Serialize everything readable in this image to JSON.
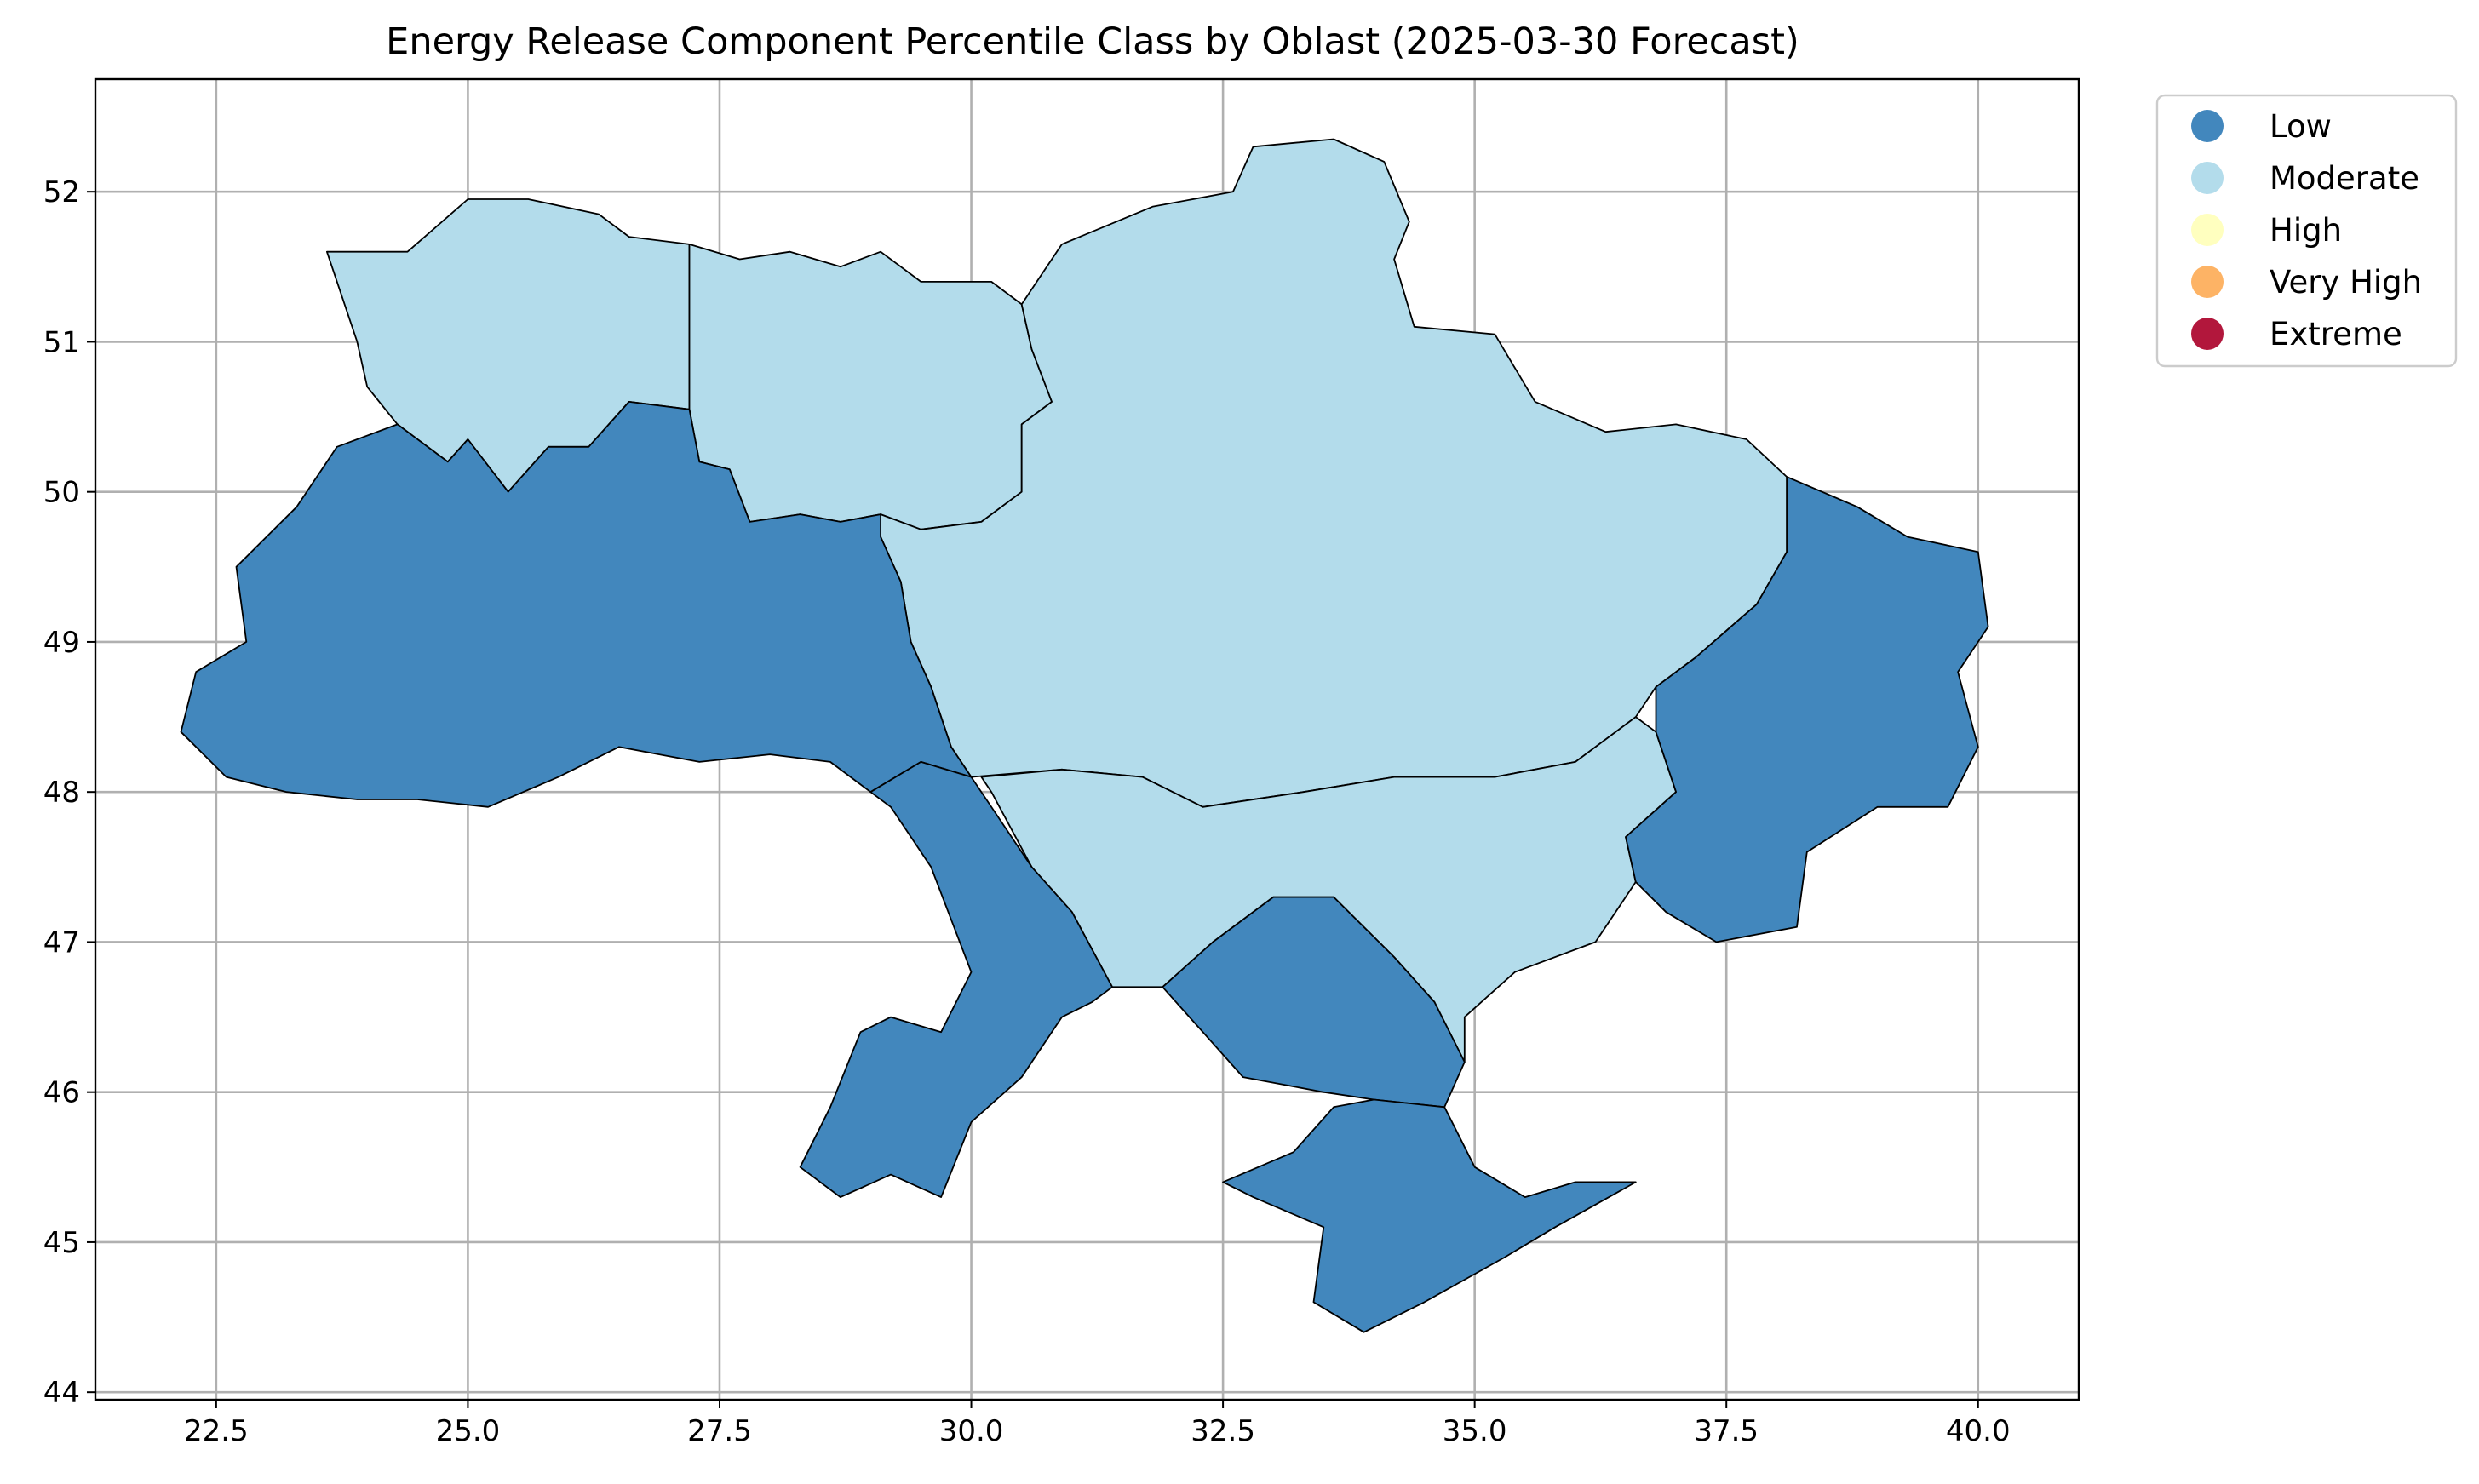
{
  "title": "Energy Release Component Percentile Class by Oblast (2025-03-30 Forecast)",
  "x_axis": {
    "min": 21.3,
    "max": 41.0,
    "ticks": [
      22.5,
      25.0,
      27.5,
      30.0,
      32.5,
      35.0,
      37.5,
      40.0
    ],
    "tick_labels": [
      "22.5",
      "25.0",
      "27.5",
      "30.0",
      "32.5",
      "35.0",
      "37.5",
      "40.0"
    ]
  },
  "y_axis": {
    "min": 43.95,
    "max": 52.75,
    "ticks": [
      44,
      45,
      46,
      47,
      48,
      49,
      50,
      51,
      52
    ],
    "tick_labels": [
      "44",
      "45",
      "46",
      "47",
      "48",
      "49",
      "50",
      "51",
      "52"
    ]
  },
  "grid": true,
  "legend": {
    "placement": "outside upper right",
    "items": [
      {
        "label": "Low",
        "color": "#4287bd"
      },
      {
        "label": "Moderate",
        "color": "#b3dceb"
      },
      {
        "label": "High",
        "color": "#ffffbf"
      },
      {
        "label": "Very High",
        "color": "#fdb365"
      },
      {
        "label": "Extreme",
        "color": "#b2173c"
      }
    ]
  },
  "chart_data": {
    "type": "choropleth",
    "value": "ERC percentile class",
    "classes": [
      "Low",
      "Moderate",
      "High",
      "Very High",
      "Extreme"
    ],
    "regions": [
      {
        "class": "Moderate",
        "points": [
          [
            23.6,
            51.6
          ],
          [
            24.4,
            51.6
          ],
          [
            25.0,
            51.95
          ],
          [
            25.6,
            51.95
          ],
          [
            26.3,
            51.85
          ],
          [
            26.6,
            51.7
          ],
          [
            27.2,
            51.65
          ],
          [
            27.2,
            51.1
          ],
          [
            27.2,
            50.55
          ],
          [
            26.6,
            50.6
          ],
          [
            26.2,
            50.3
          ],
          [
            25.8,
            50.3
          ],
          [
            25.4,
            50.0
          ],
          [
            25.0,
            50.35
          ],
          [
            24.8,
            50.2
          ],
          [
            24.3,
            50.45
          ],
          [
            24.0,
            50.7
          ],
          [
            23.9,
            51.0
          ],
          [
            23.6,
            51.6
          ]
        ]
      },
      {
        "class": "Moderate",
        "points": [
          [
            27.2,
            51.65
          ],
          [
            27.7,
            51.55
          ],
          [
            28.2,
            51.6
          ],
          [
            28.7,
            51.5
          ],
          [
            29.1,
            51.6
          ],
          [
            29.5,
            51.4
          ],
          [
            30.2,
            51.4
          ],
          [
            30.5,
            51.25
          ],
          [
            30.6,
            50.95
          ],
          [
            30.8,
            50.6
          ],
          [
            30.5,
            50.45
          ],
          [
            30.5,
            50.0
          ],
          [
            30.1,
            49.8
          ],
          [
            29.5,
            49.75
          ],
          [
            29.1,
            49.85
          ],
          [
            28.7,
            49.8
          ],
          [
            28.3,
            49.85
          ],
          [
            27.8,
            49.8
          ],
          [
            27.6,
            50.15
          ],
          [
            27.3,
            50.2
          ],
          [
            27.2,
            50.55
          ],
          [
            27.2,
            51.1
          ],
          [
            27.2,
            51.65
          ]
        ]
      },
      {
        "class": "Moderate",
        "points": [
          [
            30.5,
            51.25
          ],
          [
            30.9,
            51.65
          ],
          [
            31.8,
            51.9
          ],
          [
            32.6,
            52.0
          ],
          [
            32.8,
            52.3
          ],
          [
            33.6,
            52.35
          ],
          [
            34.1,
            52.2
          ],
          [
            34.35,
            51.8
          ],
          [
            34.2,
            51.55
          ],
          [
            34.4,
            51.1
          ],
          [
            35.2,
            51.05
          ],
          [
            35.6,
            50.6
          ],
          [
            36.3,
            50.4
          ],
          [
            37.0,
            50.45
          ],
          [
            37.7,
            50.35
          ],
          [
            38.1,
            50.1
          ],
          [
            38.1,
            49.6
          ],
          [
            37.8,
            49.25
          ],
          [
            37.2,
            48.9
          ],
          [
            36.8,
            48.7
          ],
          [
            36.6,
            48.5
          ],
          [
            36.0,
            48.2
          ],
          [
            35.2,
            48.1
          ],
          [
            34.2,
            48.1
          ],
          [
            33.3,
            48.0
          ],
          [
            32.3,
            47.9
          ],
          [
            31.7,
            48.1
          ],
          [
            30.9,
            48.15
          ],
          [
            30.0,
            48.1
          ],
          [
            29.8,
            48.3
          ],
          [
            29.6,
            48.7
          ],
          [
            29.4,
            49.0
          ],
          [
            29.3,
            49.4
          ],
          [
            29.1,
            49.7
          ],
          [
            29.1,
            49.85
          ],
          [
            29.5,
            49.75
          ],
          [
            30.1,
            49.8
          ],
          [
            30.5,
            50.0
          ],
          [
            30.5,
            50.45
          ],
          [
            30.8,
            50.6
          ],
          [
            30.6,
            50.95
          ],
          [
            30.5,
            51.25
          ]
        ]
      },
      {
        "class": "Moderate",
        "points": [
          [
            30.1,
            48.1
          ],
          [
            30.9,
            48.15
          ],
          [
            31.7,
            48.1
          ],
          [
            32.3,
            47.9
          ],
          [
            33.3,
            48.0
          ],
          [
            34.2,
            48.1
          ],
          [
            35.2,
            48.1
          ],
          [
            36.0,
            48.2
          ],
          [
            36.6,
            48.5
          ],
          [
            36.8,
            48.4
          ],
          [
            37.0,
            48.0
          ],
          [
            36.5,
            47.7
          ],
          [
            36.6,
            47.4
          ],
          [
            36.2,
            47.0
          ],
          [
            35.4,
            46.8
          ],
          [
            34.9,
            46.5
          ],
          [
            34.9,
            46.2
          ],
          [
            34.6,
            46.6
          ],
          [
            34.2,
            46.9
          ],
          [
            33.6,
            47.3
          ],
          [
            33.0,
            47.3
          ],
          [
            32.4,
            47.0
          ],
          [
            31.9,
            46.7
          ],
          [
            31.4,
            46.7
          ],
          [
            31.0,
            47.2
          ],
          [
            30.6,
            47.5
          ],
          [
            30.2,
            48.0
          ]
        ]
      },
      {
        "class": "Low",
        "points": [
          [
            24.3,
            50.45
          ],
          [
            24.8,
            50.2
          ],
          [
            25.0,
            50.35
          ],
          [
            25.4,
            50.0
          ],
          [
            25.8,
            50.3
          ],
          [
            26.2,
            50.3
          ],
          [
            26.6,
            50.6
          ],
          [
            27.2,
            50.55
          ],
          [
            27.3,
            50.2
          ],
          [
            27.6,
            50.15
          ],
          [
            27.8,
            49.8
          ],
          [
            28.3,
            49.85
          ],
          [
            28.7,
            49.8
          ],
          [
            29.1,
            49.85
          ],
          [
            29.1,
            49.7
          ],
          [
            29.3,
            49.4
          ],
          [
            29.4,
            49.0
          ],
          [
            29.6,
            48.7
          ],
          [
            29.8,
            48.3
          ],
          [
            30.0,
            48.1
          ],
          [
            29.5,
            48.2
          ],
          [
            29.0,
            48.0
          ],
          [
            28.6,
            48.2
          ],
          [
            28.0,
            48.25
          ],
          [
            27.3,
            48.2
          ],
          [
            26.5,
            48.3
          ],
          [
            25.9,
            48.1
          ],
          [
            25.2,
            47.9
          ],
          [
            24.5,
            47.95
          ],
          [
            23.9,
            47.95
          ],
          [
            23.2,
            48.0
          ],
          [
            22.6,
            48.1
          ],
          [
            22.15,
            48.4
          ],
          [
            22.3,
            48.8
          ],
          [
            22.8,
            49.0
          ],
          [
            22.7,
            49.5
          ],
          [
            23.3,
            49.9
          ],
          [
            23.7,
            50.3
          ],
          [
            24.3,
            50.45
          ]
        ]
      },
      {
        "class": "Low",
        "points": [
          [
            29.5,
            48.2
          ],
          [
            30.0,
            48.1
          ],
          [
            30.6,
            47.5
          ],
          [
            31.0,
            47.2
          ],
          [
            31.4,
            46.7
          ],
          [
            31.2,
            46.6
          ],
          [
            30.9,
            46.5
          ],
          [
            30.5,
            46.1
          ],
          [
            30.0,
            45.8
          ],
          [
            29.7,
            45.3
          ],
          [
            29.2,
            45.45
          ],
          [
            28.7,
            45.3
          ],
          [
            28.3,
            45.5
          ],
          [
            28.6,
            45.9
          ],
          [
            28.9,
            46.4
          ],
          [
            29.2,
            46.5
          ],
          [
            29.7,
            46.4
          ],
          [
            30.0,
            46.8
          ],
          [
            29.6,
            47.5
          ],
          [
            29.2,
            47.9
          ],
          [
            29.0,
            48.0
          ],
          [
            29.5,
            48.2
          ]
        ]
      },
      {
        "class": "Low",
        "points": [
          [
            31.9,
            46.7
          ],
          [
            32.4,
            47.0
          ],
          [
            33.0,
            47.3
          ],
          [
            33.6,
            47.3
          ],
          [
            34.2,
            46.9
          ],
          [
            34.6,
            46.6
          ],
          [
            34.9,
            46.2
          ],
          [
            34.7,
            45.9
          ],
          [
            34.0,
            45.95
          ],
          [
            33.5,
            46.0
          ],
          [
            32.7,
            46.1
          ],
          [
            32.3,
            46.4
          ],
          [
            31.9,
            46.7
          ]
        ]
      },
      {
        "class": "Low",
        "points": [
          [
            32.5,
            45.4
          ],
          [
            33.2,
            45.6
          ],
          [
            33.6,
            45.9
          ],
          [
            34.0,
            45.95
          ],
          [
            34.7,
            45.9
          ],
          [
            35.0,
            45.5
          ],
          [
            35.5,
            45.3
          ],
          [
            36.0,
            45.4
          ],
          [
            36.6,
            45.4
          ],
          [
            35.8,
            45.1
          ],
          [
            35.3,
            44.9
          ],
          [
            34.5,
            44.6
          ],
          [
            33.9,
            44.4
          ],
          [
            33.4,
            44.6
          ],
          [
            33.5,
            45.1
          ],
          [
            32.8,
            45.3
          ],
          [
            32.5,
            45.4
          ]
        ]
      },
      {
        "class": "Low",
        "points": [
          [
            38.1,
            50.1
          ],
          [
            38.8,
            49.9
          ],
          [
            39.3,
            49.7
          ],
          [
            40.0,
            49.6
          ],
          [
            40.1,
            49.1
          ],
          [
            39.8,
            48.8
          ],
          [
            40.0,
            48.3
          ],
          [
            39.7,
            47.9
          ],
          [
            39.0,
            47.9
          ],
          [
            38.3,
            47.6
          ],
          [
            38.2,
            47.1
          ],
          [
            37.4,
            47.0
          ],
          [
            36.9,
            47.2
          ],
          [
            36.6,
            47.4
          ],
          [
            36.5,
            47.7
          ],
          [
            37.0,
            48.0
          ],
          [
            36.8,
            48.4
          ],
          [
            36.8,
            48.7
          ],
          [
            37.2,
            48.9
          ],
          [
            37.8,
            49.25
          ],
          [
            38.1,
            49.6
          ],
          [
            38.1,
            50.1
          ]
        ]
      }
    ]
  }
}
